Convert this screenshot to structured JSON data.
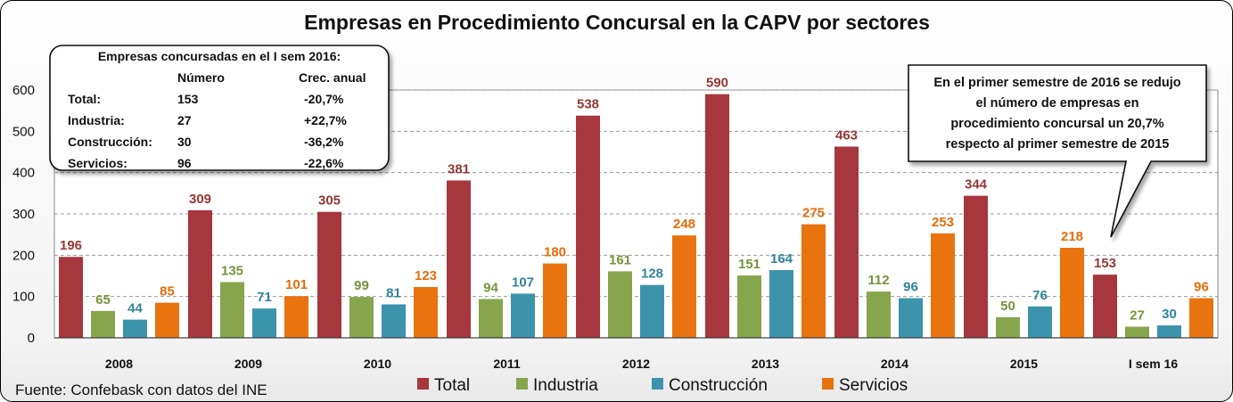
{
  "summary": {
    "heading": "Empresas concursadas en el I sem 2016:",
    "col_number": "Número",
    "col_growth": "Crec. anual",
    "rows": [
      {
        "label": "Total:",
        "number": "153",
        "growth": "-20,7%"
      },
      {
        "label": "Industria:",
        "number": "27",
        "growth": "+22,7%"
      },
      {
        "label": "Construcción:",
        "number": "30",
        "growth": "-36,2%"
      },
      {
        "label": "Servicios:",
        "number": "96",
        "growth": "-22,6%"
      }
    ]
  },
  "callout": {
    "lines": [
      "En el primer semestre de 2016 se redujo",
      "el número de empresas en",
      "procedimiento concursal un 20,7%",
      "respecto al primer semestre de  2015"
    ]
  },
  "source": "Fuente: Confebask con datos del INE",
  "chart_data": {
    "type": "bar",
    "title": "Empresas en Procedimiento Concursal en la CAPV por sectores",
    "xlabel": "",
    "ylabel": "",
    "categories": [
      "2008",
      "2009",
      "2010",
      "2011",
      "2012",
      "2013",
      "2014",
      "2015",
      "I sem 16"
    ],
    "ylim": [
      0,
      600
    ],
    "yticks": [
      0,
      100,
      200,
      300,
      400,
      500,
      600
    ],
    "grid": "horizontal dashed",
    "legend_position": "bottom",
    "series": [
      {
        "name": "Total",
        "color": "#a6373d",
        "label_color": "#953735",
        "values": [
          196,
          309,
          305,
          381,
          538,
          590,
          463,
          344,
          153
        ]
      },
      {
        "name": "Industria",
        "color": "#86a54c",
        "label_color": "#77933c",
        "values": [
          65,
          135,
          99,
          94,
          161,
          151,
          112,
          50,
          27
        ]
      },
      {
        "name": "Construcción",
        "color": "#3c93ac",
        "label_color": "#31849b",
        "values": [
          44,
          71,
          81,
          107,
          128,
          164,
          96,
          76,
          30
        ]
      },
      {
        "name": "Servicios",
        "color": "#e8730f",
        "label_color": "#e46c0a",
        "values": [
          85,
          101,
          123,
          180,
          248,
          275,
          253,
          218,
          96
        ]
      }
    ]
  }
}
